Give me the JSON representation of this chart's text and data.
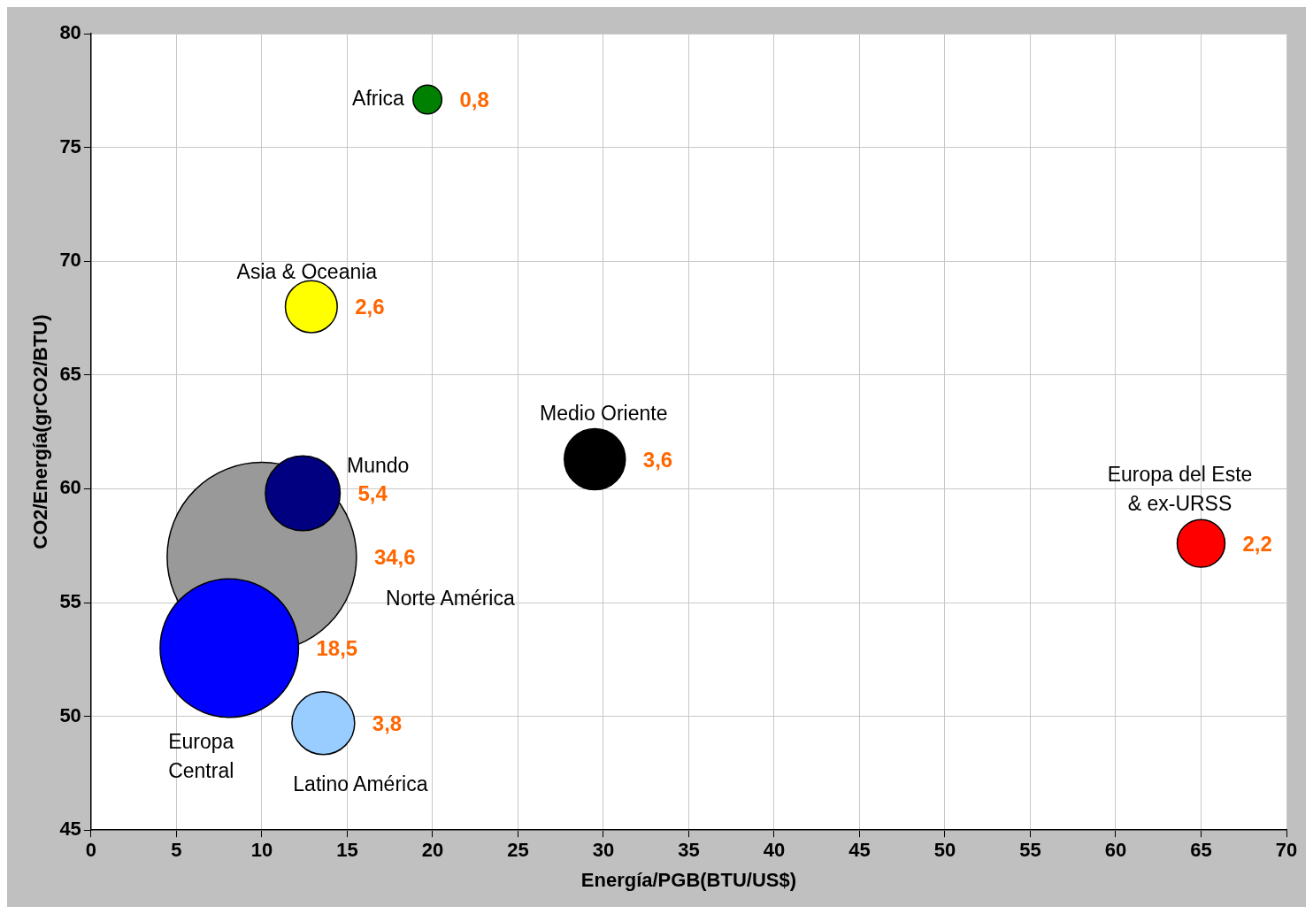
{
  "chart_data": {
    "type": "bubble",
    "xlabel": "Energía/PGB(BTU/US$)",
    "ylabel": "CO2/Energía(grCO2/BTU)",
    "xlim": [
      0,
      70
    ],
    "xticks": [
      0,
      5,
      10,
      15,
      20,
      25,
      30,
      35,
      40,
      45,
      50,
      55,
      60,
      65,
      70
    ],
    "ylim": [
      45,
      80
    ],
    "yticks": [
      45,
      50,
      55,
      60,
      65,
      70,
      75,
      80
    ],
    "grid": true,
    "legend": false,
    "series": [
      {
        "name": "Norte América",
        "color": "#999999",
        "x": [
          10.0
        ],
        "values": [
          57.0
        ],
        "sizes": [
          34.6
        ],
        "value_labels": [
          "34,6"
        ]
      },
      {
        "name": "Africa",
        "color": "#008000",
        "x": [
          19.7
        ],
        "values": [
          77.1
        ],
        "sizes": [
          0.8
        ],
        "value_labels": [
          "0,8"
        ]
      },
      {
        "name": "Asia & Oceania",
        "color": "#ffff00",
        "x": [
          12.9
        ],
        "values": [
          68.0
        ],
        "sizes": [
          2.6
        ],
        "value_labels": [
          "2,6"
        ]
      },
      {
        "name": "Medio Oriente",
        "color": "#000000",
        "x": [
          29.5
        ],
        "values": [
          61.3
        ],
        "sizes": [
          3.6
        ],
        "value_labels": [
          "3,6"
        ]
      },
      {
        "name": "Mundo",
        "color": "#000080",
        "x": [
          12.4
        ],
        "values": [
          59.8
        ],
        "sizes": [
          5.4
        ],
        "value_labels": [
          "5,4"
        ]
      },
      {
        "name": "Europa\nCentral",
        "color": "#0000ff",
        "x": [
          8.1
        ],
        "values": [
          53.0
        ],
        "sizes": [
          18.5
        ],
        "value_labels": [
          "18,5"
        ]
      },
      {
        "name": "Latino América",
        "color": "#99ccff",
        "x": [
          13.6
        ],
        "values": [
          49.7
        ],
        "sizes": [
          3.8
        ],
        "value_labels": [
          "3,8"
        ]
      },
      {
        "name": "Europa del Este\n& ex-URSS",
        "color": "#ff0000",
        "x": [
          65.0
        ],
        "values": [
          57.6
        ],
        "sizes": [
          2.2
        ],
        "value_labels": [
          "2,2"
        ]
      }
    ]
  }
}
